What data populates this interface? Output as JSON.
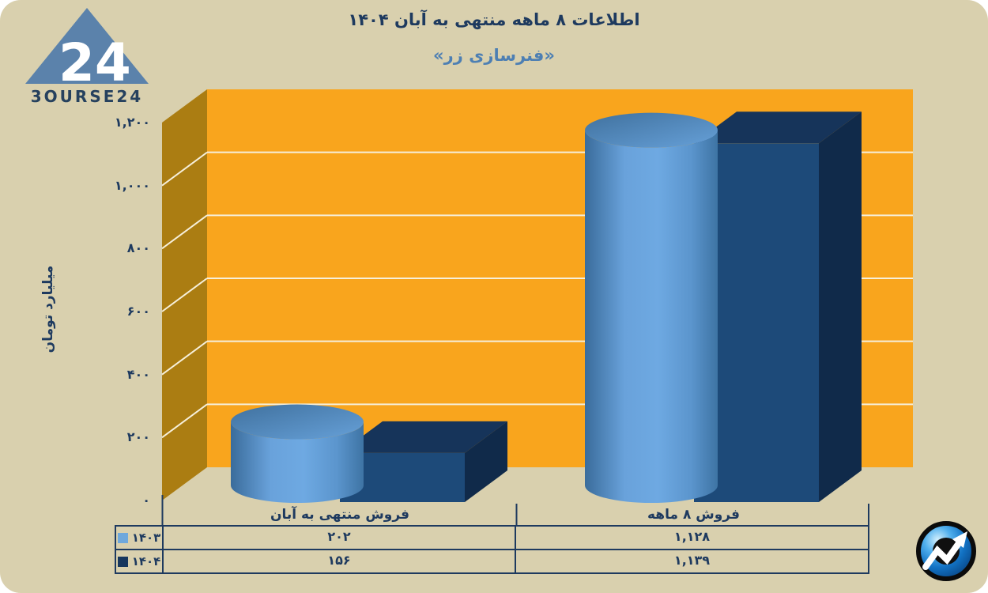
{
  "header": {
    "title": "اطلاعات ۸ ماهه منتهی به آبان ۱۴۰۴",
    "subtitle": "«فنرسازی زر»"
  },
  "logo": {
    "brand": "3OURSE24",
    "number": "24"
  },
  "chart_data": {
    "type": "bar",
    "style": "3d; series ۱۴۰۳ drawn as light-blue cylinders in front, series ۱۴۰۴ as dark navy boxes behind",
    "title": "اطلاعات ۸ ماهه منتهی به آبان ۱۴۰۴",
    "subtitle": "«فنرسازی زر»",
    "ylabel": "میلیارد تومان",
    "ylim": [
      0,
      1200
    ],
    "ytick_step": 200,
    "grid": true,
    "legend_position": "table-left-column",
    "yticks": [
      {
        "v": 1200,
        "label": "۱,۲۰۰"
      },
      {
        "v": 1000,
        "label": "۱,۰۰۰"
      },
      {
        "v": 800,
        "label": "۸۰۰"
      },
      {
        "v": 600,
        "label": "۶۰۰"
      },
      {
        "v": 400,
        "label": "۴۰۰"
      },
      {
        "v": 200,
        "label": "۲۰۰"
      },
      {
        "v": 0,
        "label": "۰"
      }
    ],
    "categories": [
      {
        "label": "فروش منتهی به آبان"
      },
      {
        "label": "فروش ۸ ماهه"
      }
    ],
    "series": [
      {
        "name": "۱۴۰۳",
        "shape": "cylinder",
        "color": "#5b9bd5",
        "legend_color": "#6fa8dc",
        "values": [
          202,
          1128
        ],
        "labels": [
          "۲۰۲",
          "۱,۱۲۸"
        ]
      },
      {
        "name": "۱۴۰۴",
        "shape": "box",
        "color": "#17375e",
        "legend_color": "#17375e",
        "values": [
          156,
          1139
        ],
        "labels": [
          "۱۵۶",
          "۱,۱۳۹"
        ]
      }
    ],
    "plot_colors": {
      "back_wall": "#f9a51d",
      "side_wall": "#ab7d12",
      "gridline": "#f6efda",
      "canvas": "#d9d0ae",
      "text": "#1e3a5f",
      "subtitle": "#4d7fb3"
    }
  }
}
